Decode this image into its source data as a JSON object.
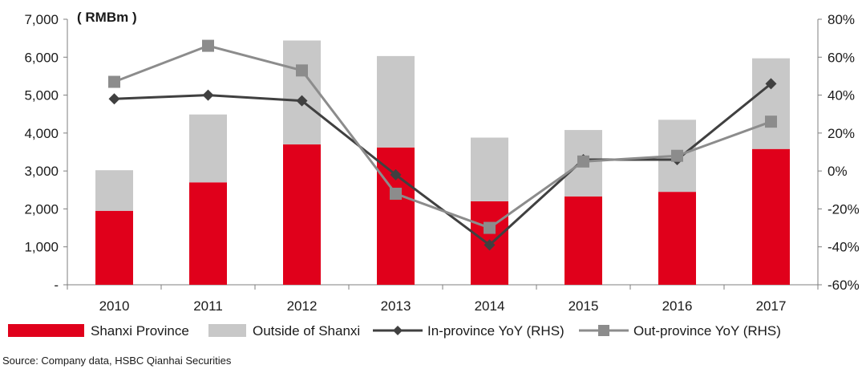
{
  "chart_data": {
    "type": "bar",
    "stacked": true,
    "unit_label": "( RMBm )",
    "categories": [
      "2010",
      "2011",
      "2012",
      "2013",
      "2014",
      "2015",
      "2016",
      "2017"
    ],
    "series": [
      {
        "name": "Shanxi Province",
        "kind": "bar",
        "axis": "left",
        "color": "#e0001b",
        "values": [
          1950,
          2700,
          3700,
          3620,
          2200,
          2330,
          2450,
          3580
        ]
      },
      {
        "name": "Outside of Shanxi",
        "kind": "bar",
        "axis": "left",
        "color": "#c8c8c8",
        "values": [
          1070,
          1790,
          2740,
          2410,
          1680,
          1750,
          1900,
          2390
        ]
      },
      {
        "name": "In-province YoY (RHS)",
        "kind": "line",
        "axis": "right",
        "color": "#404040",
        "marker": "diamond",
        "values": [
          38,
          40,
          37,
          -2,
          -39,
          6,
          6,
          46
        ]
      },
      {
        "name": "Out-province YoY (RHS)",
        "kind": "line",
        "axis": "right",
        "color": "#8c8c8c",
        "marker": "square",
        "values": [
          47,
          66,
          53,
          -12,
          -30,
          5,
          8,
          26
        ]
      }
    ],
    "left_axis": {
      "min": 0,
      "max": 7000,
      "ticks": [
        {
          "value": 7000,
          "label": "7,000"
        },
        {
          "value": 6000,
          "label": "6,000"
        },
        {
          "value": 5000,
          "label": "5,000"
        },
        {
          "value": 4000,
          "label": "4,000"
        },
        {
          "value": 3000,
          "label": "3,000"
        },
        {
          "value": 2000,
          "label": "2,000"
        },
        {
          "value": 1000,
          "label": "1,000"
        },
        {
          "value": 0,
          "label": "-"
        }
      ]
    },
    "right_axis": {
      "min": -60,
      "max": 80,
      "ticks": [
        {
          "value": 80,
          "label": "80%"
        },
        {
          "value": 60,
          "label": "60%"
        },
        {
          "value": 40,
          "label": "40%"
        },
        {
          "value": 20,
          "label": "20%"
        },
        {
          "value": 0,
          "label": "0%"
        },
        {
          "value": -20,
          "label": "-20%"
        },
        {
          "value": -40,
          "label": "-40%"
        },
        {
          "value": -60,
          "label": "-60%"
        }
      ]
    },
    "legend_position": "bottom",
    "grid": false
  },
  "source": "Source: Company data, HSBC Qianhai Securities"
}
